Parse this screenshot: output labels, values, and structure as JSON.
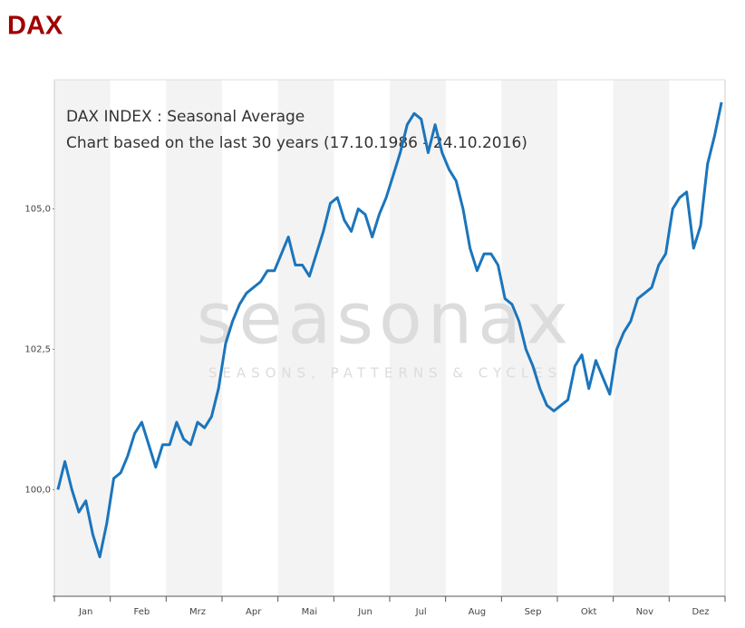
{
  "header": {
    "title": "DAX"
  },
  "chart_data": {
    "type": "line",
    "title": "DAX INDEX : Seasonal Average",
    "subtitle": "Chart based on the last 30 years (17.10.1986 - 24.10.2016)",
    "watermark": "seasonax",
    "watermark_tagline": "SEASONS, PATTERNS & CYCLES",
    "categories": [
      null,
      null,
      null,
      null,
      "Jan",
      null,
      null,
      null,
      null,
      null,
      null,
      null,
      "Feb",
      null,
      null,
      null,
      null,
      null,
      null,
      null,
      "Mrz",
      null,
      null,
      null,
      null,
      null,
      null,
      null,
      "Apr",
      null,
      null,
      null,
      null,
      null,
      null,
      null,
      "Mai",
      null,
      null,
      null,
      null,
      null,
      null,
      null,
      "Jun",
      null,
      null,
      null,
      null,
      null,
      null,
      null,
      "Jul",
      null,
      null,
      null,
      null,
      null,
      null,
      null,
      "Aug",
      null,
      null,
      null,
      null,
      null,
      null,
      null,
      "Sep",
      null,
      null,
      null,
      null,
      null,
      null,
      null,
      "Okt",
      null,
      null,
      null,
      null,
      null,
      null,
      null,
      "Nov",
      null,
      null,
      null,
      null,
      null,
      null,
      null,
      "Dez",
      null,
      null,
      null
    ],
    "series": [
      {
        "name": "DAX INDEX",
        "color": "#1b75bc",
        "values": [
          100.0,
          100.5,
          100.0,
          99.6,
          99.8,
          99.2,
          98.8,
          99.4,
          100.2,
          100.3,
          100.6,
          101.0,
          101.2,
          100.8,
          100.4,
          100.8,
          100.8,
          101.2,
          100.9,
          100.8,
          101.2,
          101.1,
          101.3,
          101.8,
          102.6,
          103.0,
          103.3,
          103.5,
          103.6,
          103.7,
          103.9,
          103.9,
          104.2,
          104.5,
          104.0,
          104.0,
          103.8,
          104.2,
          104.6,
          105.1,
          105.2,
          104.8,
          104.6,
          105.0,
          104.9,
          104.5,
          104.9,
          105.2,
          105.6,
          106.0,
          106.5,
          106.7,
          106.6,
          106.0,
          106.5,
          106.0,
          105.7,
          105.5,
          105.0,
          104.3,
          103.9,
          104.2,
          104.2,
          104.0,
          103.4,
          103.3,
          103.0,
          102.5,
          102.2,
          101.8,
          101.5,
          101.4,
          101.5,
          101.6,
          102.2,
          102.4,
          101.8,
          102.3,
          102.0,
          101.7,
          102.5,
          102.8,
          103.0,
          103.4,
          103.5,
          103.6,
          104.0,
          104.2,
          105.0,
          105.2,
          105.3,
          104.3,
          104.7,
          105.8,
          106.3,
          106.9
        ]
      }
    ],
    "ylim": [
      98.1,
      107.3
    ],
    "yticks": [
      {
        "value": 100,
        "label": "100,0"
      },
      {
        "value": 102.5,
        "label": "102,5"
      },
      {
        "value": 105,
        "label": "105,0"
      }
    ]
  }
}
